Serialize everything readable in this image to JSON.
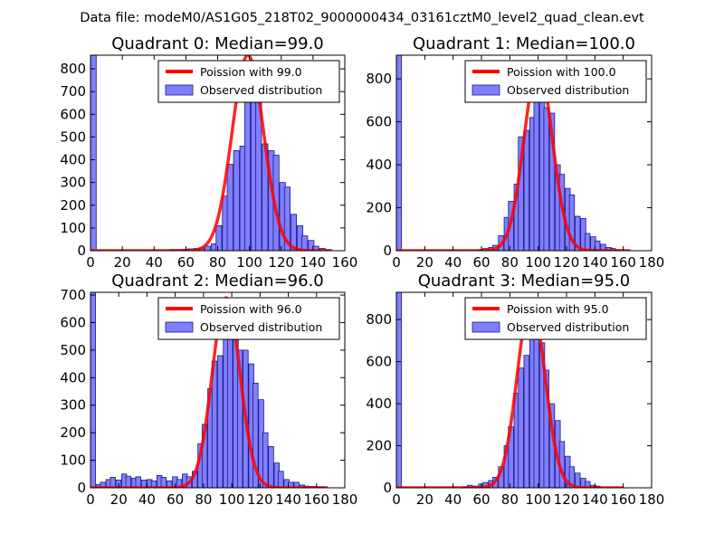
{
  "figure": {
    "suptitle": "Data file: modeM0/AS1G05_218T02_9000000434_03161cztM0_level2_quad_clean.evt"
  },
  "colors": {
    "bar_fill": "#7f7fff",
    "bar_edge": "#1a1a80",
    "poisson_line": "#ff0000",
    "axis": "#000000"
  },
  "chart_data": [
    {
      "type": "bar",
      "title": "Quadrant 0: Median=99.0",
      "xlim": [
        0,
        160
      ],
      "ylim": [
        0,
        860
      ],
      "xticks": [
        0,
        20,
        40,
        60,
        80,
        100,
        120,
        140,
        160
      ],
      "yticks": [
        0,
        100,
        200,
        300,
        400,
        500,
        600,
        700,
        800
      ],
      "bin_width": 3.6,
      "legend": {
        "line": "Poission with 99.0",
        "bars": "Observed distribution",
        "position": "upper right"
      },
      "poisson": {
        "mean": 99,
        "peak": 860,
        "x_start": 0,
        "x_end": 150
      },
      "bins": [
        [
          0,
          860
        ],
        [
          50,
          5
        ],
        [
          54,
          5
        ],
        [
          58,
          6
        ],
        [
          61,
          8
        ],
        [
          65,
          10
        ],
        [
          68,
          12
        ],
        [
          72,
          20
        ],
        [
          76,
          30
        ],
        [
          79,
          110
        ],
        [
          83,
          240
        ],
        [
          86,
          380
        ],
        [
          90,
          440
        ],
        [
          94,
          460
        ],
        [
          97,
          660
        ],
        [
          101,
          750
        ],
        [
          104,
          800
        ],
        [
          108,
          470
        ],
        [
          112,
          440
        ],
        [
          115,
          420
        ],
        [
          119,
          300
        ],
        [
          122,
          280
        ],
        [
          126,
          160
        ],
        [
          130,
          110
        ],
        [
          133,
          65
        ],
        [
          137,
          45
        ],
        [
          140,
          20
        ],
        [
          144,
          10
        ],
        [
          148,
          5
        ]
      ]
    },
    {
      "type": "bar",
      "title": "Quadrant 1: Median=100.0",
      "xlim": [
        0,
        180
      ],
      "ylim": [
        0,
        910
      ],
      "xticks": [
        0,
        20,
        40,
        60,
        80,
        100,
        120,
        140,
        160,
        180
      ],
      "yticks": [
        0,
        200,
        400,
        600,
        800
      ],
      "bin_width": 3.6,
      "legend": {
        "line": "Poission with 100.0",
        "bars": "Observed distribution",
        "position": "upper right"
      },
      "poisson": {
        "mean": 100,
        "peak": 860,
        "x_start": 0,
        "x_end": 165
      },
      "bins": [
        [
          0,
          910
        ],
        [
          58,
          5
        ],
        [
          61,
          10
        ],
        [
          65,
          15
        ],
        [
          68,
          25
        ],
        [
          72,
          70
        ],
        [
          76,
          155
        ],
        [
          79,
          230
        ],
        [
          83,
          310
        ],
        [
          86,
          530
        ],
        [
          90,
          560
        ],
        [
          94,
          620
        ],
        [
          97,
          800
        ],
        [
          101,
          735
        ],
        [
          104,
          665
        ],
        [
          108,
          640
        ],
        [
          112,
          400
        ],
        [
          115,
          355
        ],
        [
          119,
          290
        ],
        [
          122,
          260
        ],
        [
          126,
          160
        ],
        [
          130,
          150
        ],
        [
          133,
          80
        ],
        [
          137,
          65
        ],
        [
          140,
          45
        ],
        [
          144,
          30
        ],
        [
          148,
          15
        ],
        [
          151,
          10
        ],
        [
          155,
          5
        ]
      ]
    },
    {
      "type": "bar",
      "title": "Quadrant 2: Median=96.0",
      "xlim": [
        0,
        180
      ],
      "ylim": [
        0,
        710
      ],
      "xticks": [
        0,
        20,
        40,
        60,
        80,
        100,
        120,
        140,
        160,
        180
      ],
      "yticks": [
        0,
        100,
        200,
        300,
        400,
        500,
        600,
        700
      ],
      "bin_width": 3.6,
      "legend": {
        "line": "Poission with 96.0",
        "bars": "Observed distribution",
        "position": "upper right"
      },
      "poisson": {
        "mean": 96,
        "peak": 690,
        "x_start": 0,
        "x_end": 168
      },
      "bins": [
        [
          0,
          710
        ],
        [
          4,
          12
        ],
        [
          7,
          20
        ],
        [
          11,
          30
        ],
        [
          14,
          38
        ],
        [
          18,
          28
        ],
        [
          22,
          50
        ],
        [
          25,
          42
        ],
        [
          29,
          35
        ],
        [
          32,
          40
        ],
        [
          36,
          28
        ],
        [
          40,
          30
        ],
        [
          43,
          25
        ],
        [
          47,
          45
        ],
        [
          50,
          38
        ],
        [
          54,
          25
        ],
        [
          58,
          40
        ],
        [
          61,
          30
        ],
        [
          65,
          50
        ],
        [
          68,
          40
        ],
        [
          72,
          60
        ],
        [
          76,
          160
        ],
        [
          79,
          230
        ],
        [
          83,
          360
        ],
        [
          86,
          460
        ],
        [
          90,
          480
        ],
        [
          94,
          660
        ],
        [
          97,
          680
        ],
        [
          101,
          580
        ],
        [
          104,
          500
        ],
        [
          108,
          500
        ],
        [
          112,
          450
        ],
        [
          115,
          380
        ],
        [
          119,
          320
        ],
        [
          122,
          200
        ],
        [
          126,
          150
        ],
        [
          130,
          90
        ],
        [
          133,
          60
        ],
        [
          137,
          30
        ],
        [
          140,
          20
        ],
        [
          144,
          20
        ],
        [
          148,
          10
        ],
        [
          151,
          6
        ],
        [
          155,
          5
        ],
        [
          158,
          4
        ],
        [
          162,
          3
        ]
      ]
    },
    {
      "type": "bar",
      "title": "Quadrant 3: Median=95.0",
      "xlim": [
        0,
        180
      ],
      "ylim": [
        0,
        930
      ],
      "xticks": [
        0,
        20,
        40,
        60,
        80,
        100,
        120,
        140,
        160,
        180
      ],
      "yticks": [
        0,
        200,
        400,
        600,
        800
      ],
      "bin_width": 3.6,
      "legend": {
        "line": "Poission with 95.0",
        "bars": "Observed distribution",
        "position": "upper right"
      },
      "poisson": {
        "mean": 95,
        "peak": 890,
        "x_start": 0,
        "x_end": 160
      },
      "bins": [
        [
          0,
          930
        ],
        [
          47,
          5
        ],
        [
          50,
          12
        ],
        [
          54,
          8
        ],
        [
          58,
          18
        ],
        [
          61,
          25
        ],
        [
          65,
          35
        ],
        [
          68,
          50
        ],
        [
          72,
          100
        ],
        [
          76,
          200
        ],
        [
          79,
          290
        ],
        [
          83,
          450
        ],
        [
          86,
          570
        ],
        [
          90,
          630
        ],
        [
          94,
          730
        ],
        [
          97,
          850
        ],
        [
          101,
          690
        ],
        [
          104,
          560
        ],
        [
          108,
          400
        ],
        [
          112,
          320
        ],
        [
          115,
          220
        ],
        [
          119,
          150
        ],
        [
          122,
          100
        ],
        [
          126,
          70
        ],
        [
          130,
          45
        ],
        [
          133,
          30
        ],
        [
          137,
          12
        ],
        [
          140,
          8
        ]
      ]
    }
  ]
}
